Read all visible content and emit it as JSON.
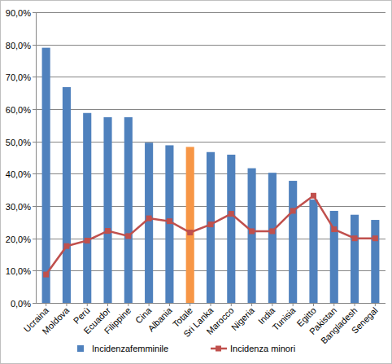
{
  "chart_data": {
    "type": "bar",
    "categories": [
      "Ucraina",
      "Moldova",
      "Perù",
      "Ecuador",
      "Filippine",
      "Cina",
      "Albania",
      "Totale",
      "Sri Lanka",
      "Marocco",
      "Nigeria",
      "India",
      "Tunisia",
      "Egitto",
      "Pakistan",
      "Bangladesh",
      "Senegal"
    ],
    "series": [
      {
        "name": "Incidenzafemminile",
        "type": "bar",
        "color": "#4f81bd",
        "colors": [
          "#4f81bd",
          "#4f81bd",
          "#4f81bd",
          "#4f81bd",
          "#4f81bd",
          "#4f81bd",
          "#4f81bd",
          "#f79646",
          "#4f81bd",
          "#4f81bd",
          "#4f81bd",
          "#4f81bd",
          "#4f81bd",
          "#4f81bd",
          "#4f81bd",
          "#4f81bd",
          "#4f81bd"
        ],
        "values": [
          79.0,
          66.8,
          58.8,
          57.5,
          57.5,
          49.6,
          48.8,
          48.3,
          46.7,
          45.9,
          41.7,
          40.3,
          37.8,
          32.0,
          28.5,
          27.3,
          25.7
        ]
      },
      {
        "name": "Incidenza minori",
        "type": "line",
        "color": "#c0504d",
        "marker": "square",
        "values": [
          8.8,
          17.6,
          19.3,
          22.3,
          20.7,
          26.2,
          25.3,
          21.8,
          24.3,
          27.6,
          22.2,
          22.2,
          28.5,
          33.2,
          22.8,
          20.0,
          20.0
        ]
      }
    ],
    "ylim": [
      0,
      90
    ],
    "yticks": [
      {
        "value": 0,
        "label": "0,0%"
      },
      {
        "value": 10,
        "label": "10,0%"
      },
      {
        "value": 20,
        "label": "20,0%"
      },
      {
        "value": 30,
        "label": "30,0%"
      },
      {
        "value": 40,
        "label": "40,0%"
      },
      {
        "value": 50,
        "label": "50,0%"
      },
      {
        "value": 60,
        "label": "60,0%"
      },
      {
        "value": 70,
        "label": "70,0%"
      },
      {
        "value": 80,
        "label": "80,0%"
      },
      {
        "value": 90,
        "label": "90,0%"
      }
    ],
    "grid": true,
    "legend": "bottom"
  }
}
